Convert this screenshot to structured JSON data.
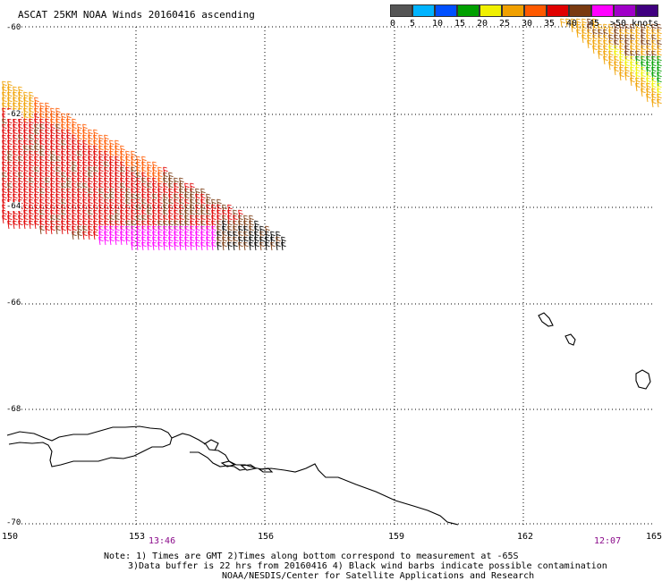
{
  "title": "ASCAT 25KM NOAA Winds 20160416 ascending",
  "legend": {
    "colors": [
      "#555555",
      "#00b4ff",
      "#0050ff",
      "#00a000",
      "#f0f000",
      "#f0a000",
      "#ff5a00",
      "#e00000",
      "#7a3a10",
      "#ff00ff",
      "#a000c8",
      "#400080"
    ],
    "tick_labels": [
      "0",
      "5",
      "10",
      "15",
      "20",
      "25",
      "30",
      "35",
      "40",
      "45",
      ">50 knots"
    ]
  },
  "lat_labels": [
    "-60",
    "-62",
    "-64",
    "-66",
    "-68",
    "-70"
  ],
  "lon_labels": [
    "150",
    "153",
    "156",
    "159",
    "162",
    "165"
  ],
  "time_labels": [
    "13:46",
    "12:07"
  ],
  "notes": [
    "Note: 1) Times are GMT 2)Times along bottom correspond to measurement at -65S",
    "3)Data buffer is 22 hrs from 20160416 4) Black wind barbs indicate possible contamination",
    "NOAA/NESDIS/Center for Satellite Applications and Research"
  ]
}
